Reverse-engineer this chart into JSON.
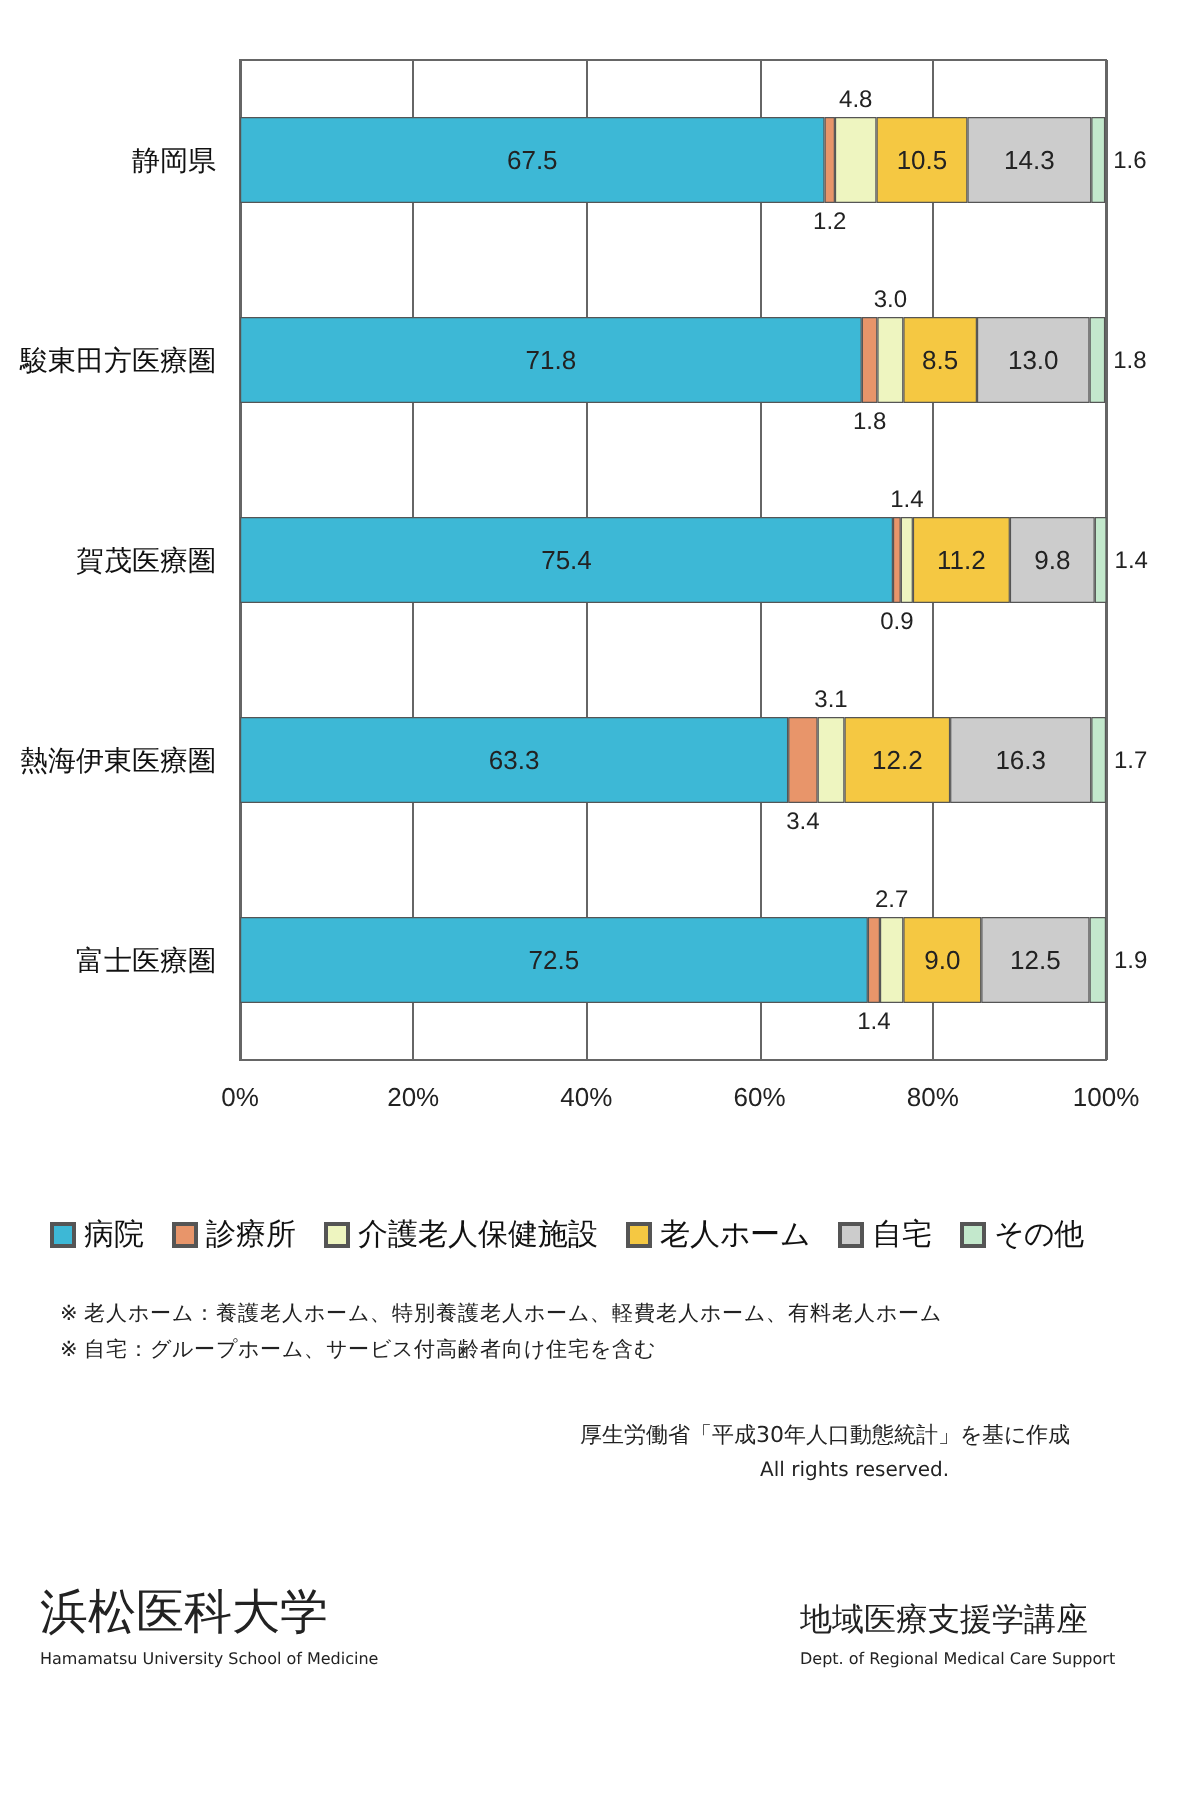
{
  "chart_data": {
    "type": "bar",
    "orientation": "horizontal",
    "stacked": true,
    "categories": [
      "静岡県",
      "駿東田方医療圏",
      "賀茂医療圏",
      "熱海伊東医療圏",
      "富士医療圏"
    ],
    "series": [
      {
        "name": "病院",
        "color": "#3db8d6",
        "values": [
          67.5,
          71.8,
          75.4,
          63.3,
          72.5
        ],
        "value_labels": [
          "67.5",
          "71.8",
          "75.4",
          "63.3",
          "72.5"
        ]
      },
      {
        "name": "診療所",
        "color": "#e8956a",
        "values": [
          1.2,
          1.8,
          0.9,
          3.4,
          1.4
        ],
        "value_labels": [
          "1.2",
          "1.8",
          "0.9",
          "3.4",
          "1.4"
        ]
      },
      {
        "name": "介護老人保健施設",
        "color": "#eef5c0",
        "values": [
          4.8,
          3.0,
          1.4,
          3.1,
          2.7
        ],
        "value_labels": [
          "4.8",
          "3.0",
          "1.4",
          "3.1",
          "2.7"
        ]
      },
      {
        "name": "老人ホーム",
        "color": "#f5c842",
        "values": [
          10.5,
          8.5,
          11.2,
          12.2,
          9.0
        ],
        "value_labels": [
          "10.5",
          "8.5",
          "11.2",
          "12.2",
          "9.0"
        ]
      },
      {
        "name": "自宅",
        "color": "#cccccc",
        "values": [
          14.3,
          13.0,
          9.8,
          16.3,
          12.5
        ],
        "value_labels": [
          "14.3",
          "13.0",
          "9.8",
          "16.3",
          "12.5"
        ]
      },
      {
        "name": "その他",
        "color": "#c3e8cc",
        "values": [
          1.6,
          1.8,
          1.4,
          1.7,
          1.9
        ],
        "value_labels": [
          "1.6",
          "1.8",
          "1.4",
          "1.7",
          "1.9"
        ]
      }
    ],
    "xlim": [
      0,
      100
    ],
    "xticks": [
      {
        "value": 0,
        "label": "0%"
      },
      {
        "value": 20,
        "label": "20%"
      },
      {
        "value": 40,
        "label": "40%"
      },
      {
        "value": 60,
        "label": "60%"
      },
      {
        "value": 80,
        "label": "80%"
      },
      {
        "value": 100,
        "label": "100%"
      }
    ],
    "grid": "x",
    "legend": "bottom",
    "annotations": [
      "※ 老人ホーム：養護老人ホーム、特別養護老人ホーム、軽費老人ホーム、有料老人ホーム",
      "※ 自宅：グループホーム、サービス付高齢者向け住宅を含む",
      "厚生労働省「平成30年人口動態統計」を基に作成",
      "All rights reserved.",
      "浜松医科大学",
      "Hamamatsu University School of Medicine",
      "地域医療支援学講座",
      "Dept. of Regional Medical Care Support"
    ]
  }
}
